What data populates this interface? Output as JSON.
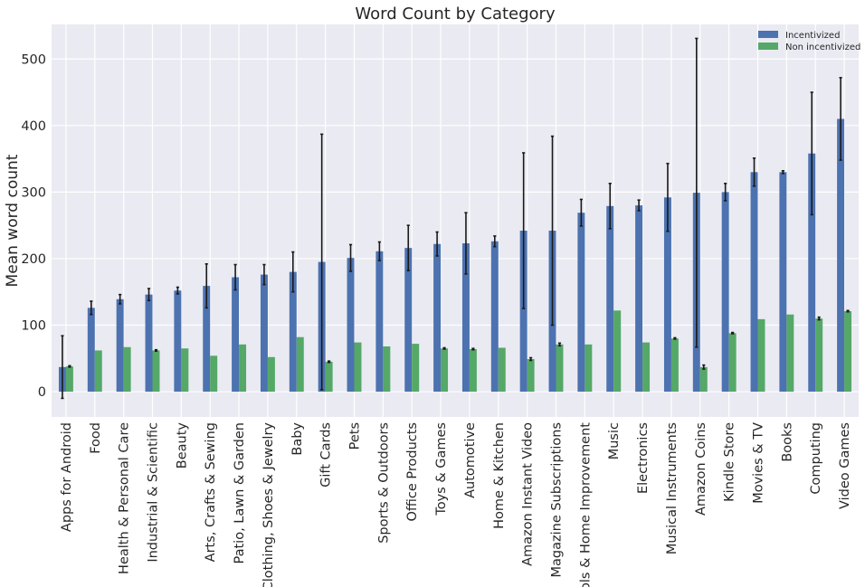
{
  "chart_data": {
    "type": "bar",
    "title": "Word Count by Category",
    "xlabel": "",
    "ylabel": "Mean word count",
    "ylim": [
      -38,
      552
    ],
    "yticks": [
      0,
      100,
      200,
      300,
      400,
      500
    ],
    "grid": true,
    "legend_position": "top-right",
    "categories": [
      "Apps for Android",
      "Food",
      "Health & Personal Care",
      "Industrial & Scientific",
      "Beauty",
      "Arts, Crafts & Sewing",
      "Patio, Lawn & Garden",
      "Clothing, Shoes & Jewelry",
      "Baby",
      "Gift Cards",
      "Pets",
      "Sports & Outdoors",
      "Office Products",
      "Toys & Games",
      "Automotive",
      "Home & Kitchen",
      "Amazon Instant Video",
      "Magazine Subscriptions",
      "Tools & Home Improvement",
      "Music",
      "Electronics",
      "Musical Instruments",
      "Amazon Coins",
      "Kindle Store",
      "Movies & TV",
      "Books",
      "Computing",
      "Video Games"
    ],
    "series": [
      {
        "name": "Incentivized",
        "color": "#4c72b0",
        "values": [
          37,
          126,
          139,
          146,
          152,
          159,
          172,
          176,
          180,
          195,
          201,
          211,
          216,
          222,
          223,
          226,
          242,
          242,
          269,
          279,
          280,
          292,
          299,
          300,
          330,
          330,
          358,
          410
        ],
        "error": [
          47,
          10,
          7,
          9,
          5,
          33,
          19,
          15,
          30,
          192,
          20,
          14,
          34,
          18,
          46,
          8,
          117,
          142,
          20,
          34,
          8,
          51,
          232,
          13,
          21,
          2,
          92,
          62
        ]
      },
      {
        "name": "Non incentivized",
        "color": "#55a868",
        "values": [
          38,
          62,
          67,
          62,
          65,
          54,
          71,
          52,
          82,
          45,
          74,
          68,
          72,
          65,
          64,
          66,
          49,
          71,
          71,
          122,
          74,
          80,
          37,
          88,
          109,
          116,
          110,
          121
        ],
        "error": [
          1,
          0,
          0,
          1,
          0,
          0,
          0,
          0,
          0,
          1,
          0,
          0,
          0,
          1,
          1,
          0,
          2,
          2,
          0,
          0,
          0,
          1,
          3,
          1,
          0,
          0,
          2,
          1
        ]
      }
    ]
  },
  "colors": {
    "axes_bg": "#eaeaf2",
    "grid": "#ffffff",
    "text": "#262626",
    "errorbar": "#1a1a1a"
  }
}
